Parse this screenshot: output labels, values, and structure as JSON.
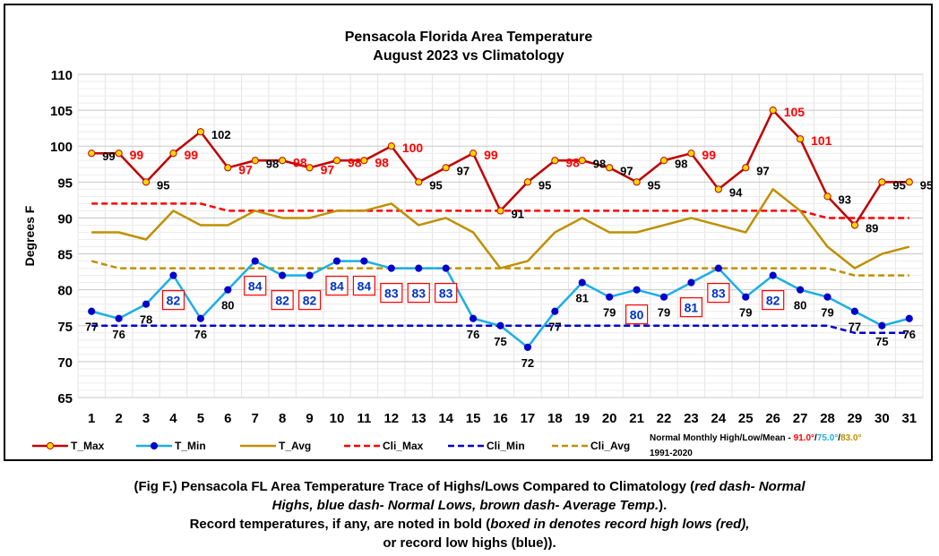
{
  "chart_data": {
    "type": "line",
    "title_line1": "Pensacola Florida Area Temperature",
    "title_line2": "August 2023 vs Climatology",
    "ylabel": "Degrees F",
    "xlabel": "",
    "ylim": [
      65,
      110
    ],
    "yticks": [
      65,
      70,
      75,
      80,
      85,
      90,
      95,
      100,
      105,
      110
    ],
    "x": [
      1,
      2,
      3,
      4,
      5,
      6,
      7,
      8,
      9,
      10,
      11,
      12,
      13,
      14,
      15,
      16,
      17,
      18,
      19,
      20,
      21,
      22,
      23,
      24,
      25,
      26,
      27,
      28,
      29,
      30,
      31
    ],
    "x_labels": [
      "1",
      "2",
      "3",
      "4",
      "5",
      "6",
      "7",
      "8",
      "9",
      "10",
      "11",
      "12",
      "13",
      "14",
      "15",
      "16",
      "17",
      "18",
      "19",
      "20",
      "21",
      "22",
      "23",
      "24",
      "25",
      "26",
      "27",
      "28",
      "29",
      "30",
      "31"
    ],
    "grid": true,
    "series": [
      {
        "name": "T_Max",
        "color": "#c00000",
        "marker_fill": "#ffd700",
        "values": [
          99,
          99,
          95,
          99,
          102,
          97,
          98,
          98,
          97,
          98,
          98,
          100,
          95,
          97,
          99,
          91,
          95,
          98,
          98,
          97,
          95,
          98,
          99,
          94,
          97,
          105,
          101,
          93,
          89,
          95,
          95
        ]
      },
      {
        "name": "T_Min",
        "color": "#1aaee6",
        "marker_fill": "#0000cc",
        "values": [
          77,
          76,
          78,
          82,
          76,
          80,
          84,
          82,
          82,
          84,
          84,
          83,
          83,
          83,
          76,
          75,
          72,
          77,
          81,
          79,
          80,
          79,
          81,
          83,
          79,
          82,
          80,
          79,
          77,
          75,
          76
        ]
      },
      {
        "name": "T_Avg",
        "color": "#bf9000",
        "values": [
          88,
          88,
          87,
          91,
          89,
          89,
          91,
          90,
          90,
          91,
          91,
          92,
          89,
          90,
          88,
          83,
          84,
          88,
          90,
          88,
          88,
          89,
          90,
          89,
          88,
          94,
          91,
          86,
          83,
          85,
          86
        ]
      },
      {
        "name": "Cli_Max",
        "color": "#ff0000",
        "dashed": true,
        "values": [
          92,
          92,
          92,
          92,
          92,
          91,
          91,
          91,
          91,
          91,
          91,
          91,
          91,
          91,
          91,
          91,
          91,
          91,
          91,
          91,
          91,
          91,
          91,
          91,
          91,
          91,
          91,
          90,
          90,
          90,
          90
        ]
      },
      {
        "name": "Cli_Min",
        "color": "#0000cc",
        "dashed": true,
        "values": [
          75,
          75,
          75,
          75,
          75,
          75,
          75,
          75,
          75,
          75,
          75,
          75,
          75,
          75,
          75,
          75,
          75,
          75,
          75,
          75,
          75,
          75,
          75,
          75,
          75,
          75,
          75,
          75,
          74,
          74,
          74
        ]
      },
      {
        "name": "Cli_Avg",
        "color": "#bf9000",
        "dashed": true,
        "values": [
          84,
          83,
          83,
          83,
          83,
          83,
          83,
          83,
          83,
          83,
          83,
          83,
          83,
          83,
          83,
          83,
          83,
          83,
          83,
          83,
          83,
          83,
          83,
          83,
          83,
          83,
          83,
          83,
          82,
          82,
          82
        ]
      }
    ],
    "max_labels": [
      {
        "day": 1,
        "text": "99",
        "color": "#000000"
      },
      {
        "day": 2,
        "text": "99",
        "color": "#ff0000"
      },
      {
        "day": 3,
        "text": "95",
        "color": "#000000"
      },
      {
        "day": 4,
        "text": "99",
        "color": "#ff0000"
      },
      {
        "day": 5,
        "text": "102",
        "color": "#000000"
      },
      {
        "day": 6,
        "text": "97",
        "color": "#ff0000"
      },
      {
        "day": 7,
        "text": "98",
        "color": "#000000"
      },
      {
        "day": 8,
        "text": "98",
        "color": "#ff0000"
      },
      {
        "day": 9,
        "text": "97",
        "color": "#ff0000"
      },
      {
        "day": 10,
        "text": "98",
        "color": "#ff0000"
      },
      {
        "day": 11,
        "text": "98",
        "color": "#ff0000"
      },
      {
        "day": 12,
        "text": "100",
        "color": "#ff0000"
      },
      {
        "day": 13,
        "text": "95",
        "color": "#000000"
      },
      {
        "day": 14,
        "text": "97",
        "color": "#000000"
      },
      {
        "day": 15,
        "text": "99",
        "color": "#ff0000"
      },
      {
        "day": 16,
        "text": "91",
        "color": "#000000"
      },
      {
        "day": 17,
        "text": "95",
        "color": "#000000"
      },
      {
        "day": 18,
        "text": "98",
        "color": "#ff0000"
      },
      {
        "day": 19,
        "text": "98",
        "color": "#000000"
      },
      {
        "day": 20,
        "text": "97",
        "color": "#000000"
      },
      {
        "day": 21,
        "text": "95",
        "color": "#000000"
      },
      {
        "day": 22,
        "text": "98",
        "color": "#000000"
      },
      {
        "day": 23,
        "text": "99",
        "color": "#ff0000"
      },
      {
        "day": 24,
        "text": "94",
        "color": "#000000"
      },
      {
        "day": 25,
        "text": "97",
        "color": "#000000"
      },
      {
        "day": 26,
        "text": "105",
        "color": "#ff0000"
      },
      {
        "day": 27,
        "text": "101",
        "color": "#ff0000"
      },
      {
        "day": 28,
        "text": "93",
        "color": "#000000"
      },
      {
        "day": 29,
        "text": "89",
        "color": "#000000"
      },
      {
        "day": 30,
        "text": "95",
        "color": "#000000"
      },
      {
        "day": 31,
        "text": "95",
        "color": "#000000"
      }
    ],
    "min_labels": [
      {
        "day": 1,
        "text": "77",
        "boxed": false
      },
      {
        "day": 2,
        "text": "76",
        "boxed": false
      },
      {
        "day": 3,
        "text": "78",
        "boxed": false
      },
      {
        "day": 4,
        "text": "82",
        "boxed": true
      },
      {
        "day": 5,
        "text": "76",
        "boxed": false
      },
      {
        "day": 6,
        "text": "80",
        "boxed": false
      },
      {
        "day": 7,
        "text": "84",
        "boxed": true
      },
      {
        "day": 8,
        "text": "82",
        "boxed": true
      },
      {
        "day": 9,
        "text": "82",
        "boxed": true
      },
      {
        "day": 10,
        "text": "84",
        "boxed": true
      },
      {
        "day": 11,
        "text": "84",
        "boxed": true
      },
      {
        "day": 12,
        "text": "83",
        "boxed": true
      },
      {
        "day": 13,
        "text": "83",
        "boxed": true
      },
      {
        "day": 14,
        "text": "83",
        "boxed": true
      },
      {
        "day": 15,
        "text": "76",
        "boxed": false
      },
      {
        "day": 16,
        "text": "75",
        "boxed": false
      },
      {
        "day": 17,
        "text": "72",
        "boxed": false
      },
      {
        "day": 18,
        "text": "77",
        "boxed": false
      },
      {
        "day": 19,
        "text": "81",
        "boxed": false
      },
      {
        "day": 20,
        "text": "79",
        "boxed": false
      },
      {
        "day": 21,
        "text": "80",
        "boxed": true
      },
      {
        "day": 22,
        "text": "79",
        "boxed": false
      },
      {
        "day": 23,
        "text": "81",
        "boxed": true
      },
      {
        "day": 24,
        "text": "83",
        "boxed": true
      },
      {
        "day": 25,
        "text": "79",
        "boxed": false
      },
      {
        "day": 26,
        "text": "82",
        "boxed": true
      },
      {
        "day": 27,
        "text": "80",
        "boxed": false
      },
      {
        "day": 28,
        "text": "79",
        "boxed": false
      },
      {
        "day": 29,
        "text": "77",
        "boxed": false
      },
      {
        "day": 30,
        "text": "75",
        "boxed": false
      },
      {
        "day": 31,
        "text": "76",
        "boxed": false
      }
    ],
    "legend_placement": "bottom",
    "normals_note": {
      "prefix": "Normal Monthly High/Low/Mean - ",
      "high": "91.0°",
      "sep1": "/",
      "low": "75.0°",
      "sep2": "/",
      "mean": "83.0°",
      "period": "1991-2020",
      "high_color": "#ff0000",
      "low_color": "#1aaee6",
      "mean_color": "#bf9000"
    }
  },
  "caption": {
    "line1_a": "(Fig F.) Pensacola FL Area Temperature Trace of Highs/Lows Compared to Climatology (",
    "line1_b": "red dash- Normal",
    "line2_a": "Highs, blue dash- Normal Lows, brown dash- Average Temp.",
    "line2_b": ").",
    "line3_a": "Record temperatures, if any, are noted in bold (",
    "line3_b": "boxed in denotes record high lows (red),",
    "line4": "or record low highs (blue))."
  }
}
